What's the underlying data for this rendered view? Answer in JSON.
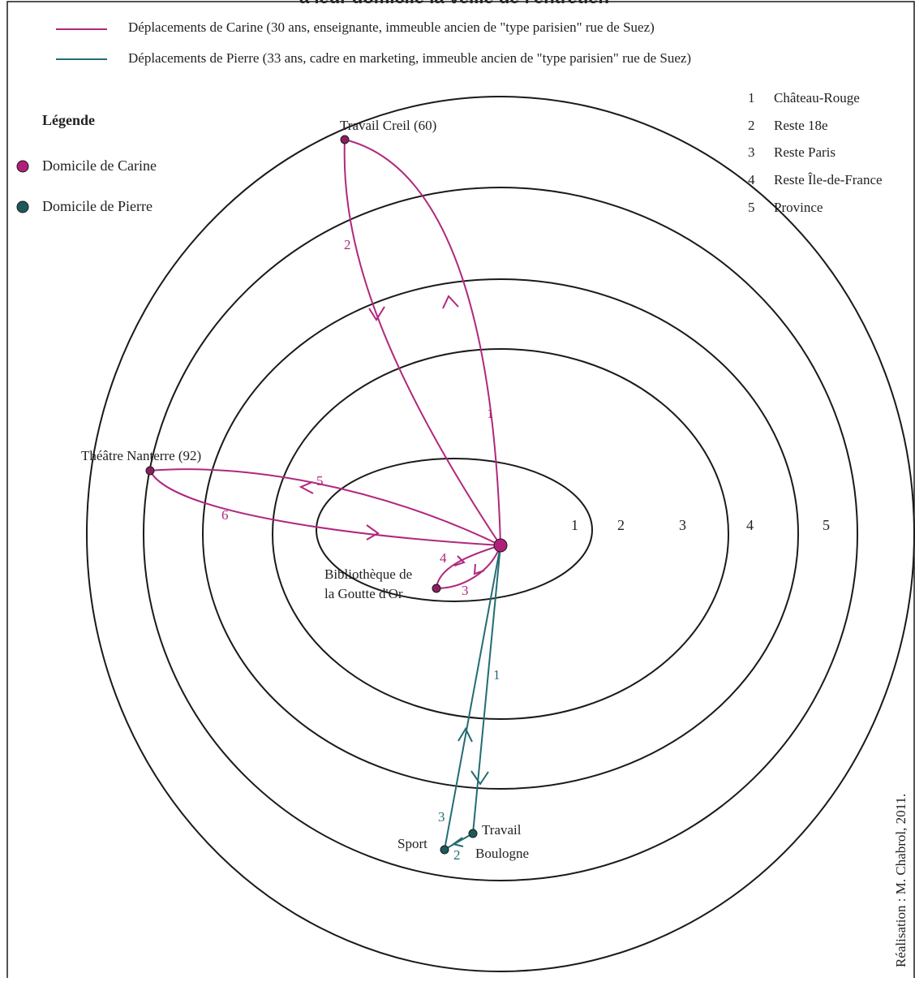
{
  "title_partial": "à leur domicile la veille de l'entretien",
  "colors": {
    "carine": "#b0287e",
    "pierre": "#236c73",
    "carine_dot": "#b0207a",
    "pierre_dot": "#1e5a5c",
    "ring": "#1a1a1a",
    "text": "#222222"
  },
  "legend_lines": {
    "carine": "Déplacements de Carine (30 ans, enseignante, immeuble ancien de \"type parisien\" rue de Suez)",
    "pierre": "Déplacements de Pierre (33 ans, cadre en marketing, immeuble ancien de \"type parisien\" rue de Suez)"
  },
  "legend": {
    "heading": "Légende",
    "carine_home": "Domicile de Carine",
    "pierre_home": "Domicile de Pierre"
  },
  "zones": [
    {
      "num": "1",
      "name": "Château-Rouge"
    },
    {
      "num": "2",
      "name": "Reste 18e"
    },
    {
      "num": "3",
      "name": "Reste Paris"
    },
    {
      "num": "4",
      "name": "Reste Île-de-France"
    },
    {
      "num": "5",
      "name": "Province"
    }
  ],
  "ring_labels": [
    "1",
    "2",
    "3",
    "4",
    "5"
  ],
  "places": {
    "creil": "Travail Creil (60)",
    "nanterre": "Théâtre Nanterre (92)",
    "biblio_line1": "Bibliothèque de",
    "biblio_line2": "la Goutte d'Or",
    "travail": "Travail",
    "boulogne": "Boulogne",
    "sport": "Sport"
  },
  "trip_numbers": {
    "creil_out": "1",
    "creil_back": "2",
    "biblio_out": "3",
    "biblio_back": "4",
    "nanterre_out": "5",
    "nanterre_back": "6",
    "pierre_work": "1",
    "pierre_sport": "2",
    "pierre_home": "3"
  },
  "credit": "Réalisation : M. Chabrol, 2011."
}
